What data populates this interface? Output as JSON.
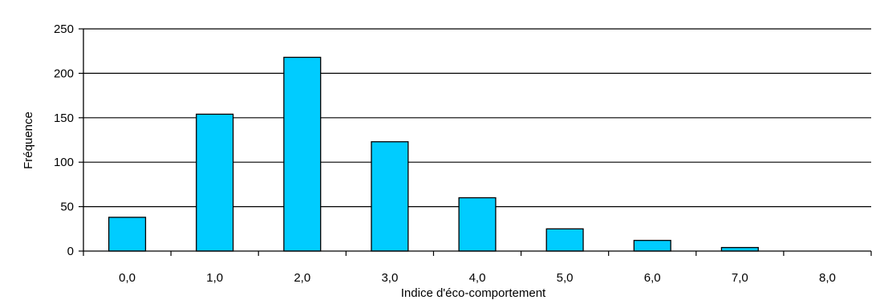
{
  "chart_data": {
    "type": "bar",
    "title": "",
    "xlabel": "Indice d'éco-comportement",
    "ylabel": "Fréquence",
    "categories": [
      "0,0",
      "1,0",
      "2,0",
      "3,0",
      "4,0",
      "5,0",
      "6,0",
      "7,0",
      "8,0"
    ],
    "values": [
      38,
      154,
      218,
      123,
      60,
      25,
      12,
      4,
      0
    ],
    "ylim": [
      0,
      250
    ],
    "yticks": [
      "0",
      "50",
      "100",
      "150",
      "200",
      "250"
    ],
    "grid": true,
    "legend": "none",
    "colors": {
      "bar_fill": "#00CCFF",
      "bar_stroke": "#000000",
      "grid": "#000000",
      "background": "#FFFFFF"
    }
  }
}
